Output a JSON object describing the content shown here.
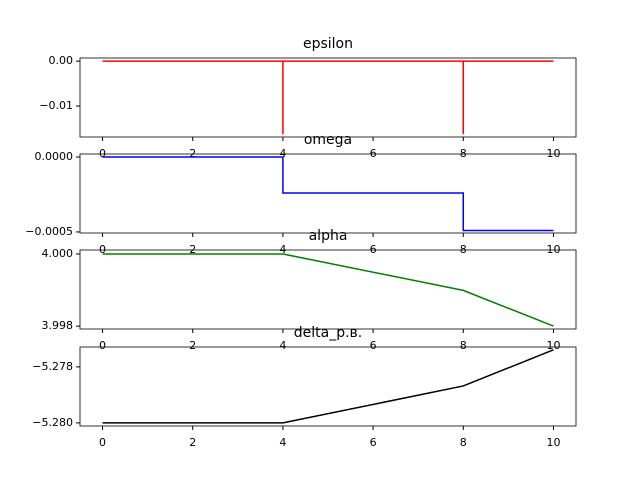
{
  "chart_data": [
    {
      "type": "line",
      "title": "epsilon",
      "x": [
        0,
        4,
        4,
        4,
        8,
        8,
        8,
        10
      ],
      "series": [
        {
          "color": "#ff0000",
          "values": [
            0,
            0,
            -0.0163,
            0,
            0,
            -0.0163,
            0,
            0
          ]
        }
      ],
      "xlim": [
        -0.5,
        10.5
      ],
      "xticks": [
        0,
        2,
        4,
        6,
        8,
        10
      ],
      "ylim": [
        -0.0169,
        0.0007
      ],
      "yticks": [
        {
          "value": 0,
          "label": "0.00"
        },
        {
          "value": -0.01,
          "label": "−0.01"
        }
      ]
    },
    {
      "type": "line",
      "title": "omega",
      "x": [
        0,
        4,
        4,
        8,
        8,
        10
      ],
      "series": [
        {
          "color": "#0000ff",
          "values": [
            0,
            0,
            -0.00024,
            -0.00024,
            -0.00049,
            -0.00049
          ]
        }
      ],
      "xlim": [
        -0.5,
        10.5
      ],
      "xticks": [
        0,
        2,
        4,
        6,
        8,
        10
      ],
      "ylim": [
        -0.000507,
        2e-05
      ],
      "yticks": [
        {
          "value": 0,
          "label": "0.0000"
        },
        {
          "value": -0.0005,
          "label": "−0.0005"
        }
      ]
    },
    {
      "type": "line",
      "title": "alpha",
      "x": [
        0,
        4,
        8,
        10
      ],
      "series": [
        {
          "color": "#008000",
          "values": [
            4.0,
            4.0,
            3.99899,
            3.998
          ]
        }
      ],
      "xlim": [
        -0.5,
        10.5
      ],
      "xticks": [
        0,
        2,
        4,
        6,
        8,
        10
      ],
      "ylim": [
        3.99792,
        4.00011
      ],
      "yticks": [
        {
          "value": 4.0,
          "label": "4.000"
        },
        {
          "value": 3.998,
          "label": "3.998"
        }
      ]
    },
    {
      "type": "line",
      "title": "delta_р.в.",
      "x": [
        0,
        4,
        8,
        10
      ],
      "series": [
        {
          "color": "#000000",
          "values": [
            -5.28,
            -5.28,
            -5.27868,
            -5.27739
          ]
        }
      ],
      "xlim": [
        -0.5,
        10.5
      ],
      "xticks": [
        0,
        2,
        4,
        6,
        8,
        10
      ],
      "ylim": [
        -5.28011,
        -5.27729
      ],
      "yticks": [
        {
          "value": -5.278,
          "label": "−5.278"
        },
        {
          "value": -5.28,
          "label": "−5.280"
        }
      ]
    }
  ]
}
